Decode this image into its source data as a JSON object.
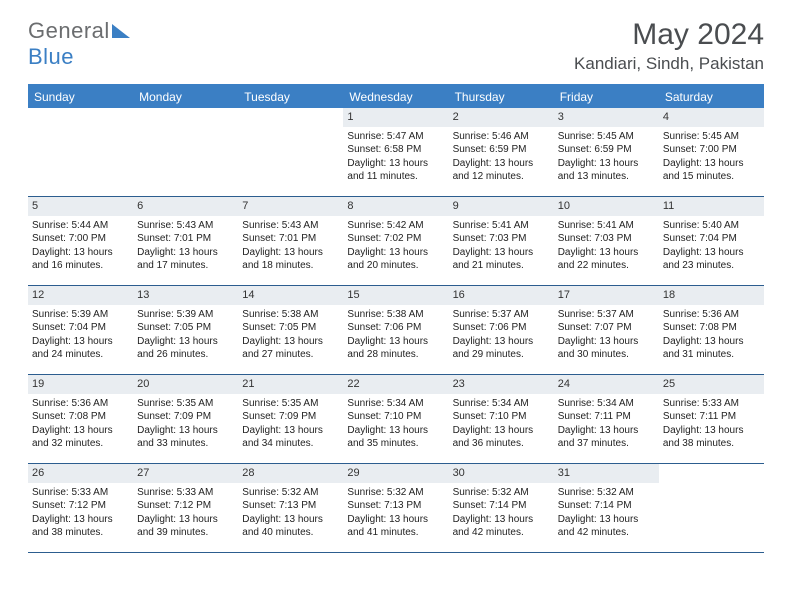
{
  "brand": {
    "text1": "General",
    "text2": "Blue"
  },
  "title": {
    "month": "May 2024",
    "location": "Kandiari, Sindh, Pakistan"
  },
  "colors": {
    "header_blue": "#3b7fc4",
    "rule_blue": "#2c5d8f",
    "daynum_bg": "#e9edf1",
    "text_dark": "#222222",
    "text_gray": "#4a4d50",
    "logo_gray": "#6b6d6f",
    "white": "#ffffff"
  },
  "dow": [
    "Sunday",
    "Monday",
    "Tuesday",
    "Wednesday",
    "Thursday",
    "Friday",
    "Saturday"
  ],
  "weeks": [
    [
      null,
      null,
      null,
      {
        "n": "1",
        "sr": "Sunrise: 5:47 AM",
        "ss": "Sunset: 6:58 PM",
        "dl": "Daylight: 13 hours and 11 minutes."
      },
      {
        "n": "2",
        "sr": "Sunrise: 5:46 AM",
        "ss": "Sunset: 6:59 PM",
        "dl": "Daylight: 13 hours and 12 minutes."
      },
      {
        "n": "3",
        "sr": "Sunrise: 5:45 AM",
        "ss": "Sunset: 6:59 PM",
        "dl": "Daylight: 13 hours and 13 minutes."
      },
      {
        "n": "4",
        "sr": "Sunrise: 5:45 AM",
        "ss": "Sunset: 7:00 PM",
        "dl": "Daylight: 13 hours and 15 minutes."
      }
    ],
    [
      {
        "n": "5",
        "sr": "Sunrise: 5:44 AM",
        "ss": "Sunset: 7:00 PM",
        "dl": "Daylight: 13 hours and 16 minutes."
      },
      {
        "n": "6",
        "sr": "Sunrise: 5:43 AM",
        "ss": "Sunset: 7:01 PM",
        "dl": "Daylight: 13 hours and 17 minutes."
      },
      {
        "n": "7",
        "sr": "Sunrise: 5:43 AM",
        "ss": "Sunset: 7:01 PM",
        "dl": "Daylight: 13 hours and 18 minutes."
      },
      {
        "n": "8",
        "sr": "Sunrise: 5:42 AM",
        "ss": "Sunset: 7:02 PM",
        "dl": "Daylight: 13 hours and 20 minutes."
      },
      {
        "n": "9",
        "sr": "Sunrise: 5:41 AM",
        "ss": "Sunset: 7:03 PM",
        "dl": "Daylight: 13 hours and 21 minutes."
      },
      {
        "n": "10",
        "sr": "Sunrise: 5:41 AM",
        "ss": "Sunset: 7:03 PM",
        "dl": "Daylight: 13 hours and 22 minutes."
      },
      {
        "n": "11",
        "sr": "Sunrise: 5:40 AM",
        "ss": "Sunset: 7:04 PM",
        "dl": "Daylight: 13 hours and 23 minutes."
      }
    ],
    [
      {
        "n": "12",
        "sr": "Sunrise: 5:39 AM",
        "ss": "Sunset: 7:04 PM",
        "dl": "Daylight: 13 hours and 24 minutes."
      },
      {
        "n": "13",
        "sr": "Sunrise: 5:39 AM",
        "ss": "Sunset: 7:05 PM",
        "dl": "Daylight: 13 hours and 26 minutes."
      },
      {
        "n": "14",
        "sr": "Sunrise: 5:38 AM",
        "ss": "Sunset: 7:05 PM",
        "dl": "Daylight: 13 hours and 27 minutes."
      },
      {
        "n": "15",
        "sr": "Sunrise: 5:38 AM",
        "ss": "Sunset: 7:06 PM",
        "dl": "Daylight: 13 hours and 28 minutes."
      },
      {
        "n": "16",
        "sr": "Sunrise: 5:37 AM",
        "ss": "Sunset: 7:06 PM",
        "dl": "Daylight: 13 hours and 29 minutes."
      },
      {
        "n": "17",
        "sr": "Sunrise: 5:37 AM",
        "ss": "Sunset: 7:07 PM",
        "dl": "Daylight: 13 hours and 30 minutes."
      },
      {
        "n": "18",
        "sr": "Sunrise: 5:36 AM",
        "ss": "Sunset: 7:08 PM",
        "dl": "Daylight: 13 hours and 31 minutes."
      }
    ],
    [
      {
        "n": "19",
        "sr": "Sunrise: 5:36 AM",
        "ss": "Sunset: 7:08 PM",
        "dl": "Daylight: 13 hours and 32 minutes."
      },
      {
        "n": "20",
        "sr": "Sunrise: 5:35 AM",
        "ss": "Sunset: 7:09 PM",
        "dl": "Daylight: 13 hours and 33 minutes."
      },
      {
        "n": "21",
        "sr": "Sunrise: 5:35 AM",
        "ss": "Sunset: 7:09 PM",
        "dl": "Daylight: 13 hours and 34 minutes."
      },
      {
        "n": "22",
        "sr": "Sunrise: 5:34 AM",
        "ss": "Sunset: 7:10 PM",
        "dl": "Daylight: 13 hours and 35 minutes."
      },
      {
        "n": "23",
        "sr": "Sunrise: 5:34 AM",
        "ss": "Sunset: 7:10 PM",
        "dl": "Daylight: 13 hours and 36 minutes."
      },
      {
        "n": "24",
        "sr": "Sunrise: 5:34 AM",
        "ss": "Sunset: 7:11 PM",
        "dl": "Daylight: 13 hours and 37 minutes."
      },
      {
        "n": "25",
        "sr": "Sunrise: 5:33 AM",
        "ss": "Sunset: 7:11 PM",
        "dl": "Daylight: 13 hours and 38 minutes."
      }
    ],
    [
      {
        "n": "26",
        "sr": "Sunrise: 5:33 AM",
        "ss": "Sunset: 7:12 PM",
        "dl": "Daylight: 13 hours and 38 minutes."
      },
      {
        "n": "27",
        "sr": "Sunrise: 5:33 AM",
        "ss": "Sunset: 7:12 PM",
        "dl": "Daylight: 13 hours and 39 minutes."
      },
      {
        "n": "28",
        "sr": "Sunrise: 5:32 AM",
        "ss": "Sunset: 7:13 PM",
        "dl": "Daylight: 13 hours and 40 minutes."
      },
      {
        "n": "29",
        "sr": "Sunrise: 5:32 AM",
        "ss": "Sunset: 7:13 PM",
        "dl": "Daylight: 13 hours and 41 minutes."
      },
      {
        "n": "30",
        "sr": "Sunrise: 5:32 AM",
        "ss": "Sunset: 7:14 PM",
        "dl": "Daylight: 13 hours and 42 minutes."
      },
      {
        "n": "31",
        "sr": "Sunrise: 5:32 AM",
        "ss": "Sunset: 7:14 PM",
        "dl": "Daylight: 13 hours and 42 minutes."
      },
      null
    ]
  ]
}
